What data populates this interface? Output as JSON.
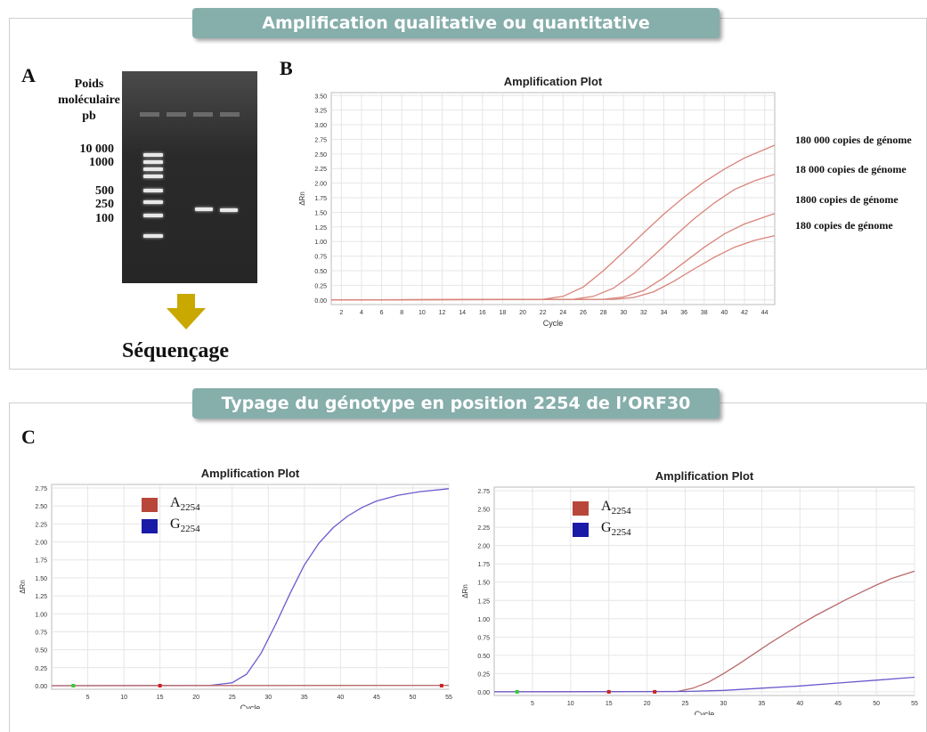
{
  "banners": {
    "top": "Amplification qualitative ou quantitative",
    "bottom": "Typage du génotype en position 2254 de l’ORF30"
  },
  "panel_letters": {
    "a": "A",
    "b": "B",
    "c": "C"
  },
  "gel": {
    "title_line1": "Poids",
    "title_line2": "moléculaire",
    "title_line3": "pb",
    "ladder_labels": [
      "10 000",
      "1000",
      "500",
      "250",
      "100"
    ]
  },
  "sequencing_label": "Séquençage",
  "colors": {
    "banner": "#86aeab",
    "curve_b": "#d9847a",
    "series_a": "#b8473a",
    "series_g": "#1a1aa8",
    "series_g_curve": "#6a5acd",
    "series_a_curve": "#b86a6a",
    "arrow": "#c9a800"
  },
  "curve_labels": [
    "180 000 copies de génome",
    "18 000 copies de génome",
    "1800 copies de génome",
    "180 copies de génome"
  ],
  "chart_data": [
    {
      "type": "line",
      "title": "Amplification Plot",
      "xlabel": "Cycle",
      "ylabel": "ΔRn",
      "xlim": [
        1,
        45
      ],
      "ylim": [
        -0.08,
        3.55
      ],
      "x_ticks": [
        2,
        4,
        6,
        8,
        10,
        12,
        14,
        16,
        18,
        20,
        22,
        24,
        26,
        28,
        30,
        32,
        34,
        36,
        38,
        40,
        42,
        44
      ],
      "y_ticks": [
        0.0,
        0.25,
        0.5,
        0.75,
        1.0,
        1.25,
        1.5,
        1.75,
        2.0,
        2.25,
        2.5,
        2.75,
        3.0,
        3.25,
        3.5
      ],
      "y_tick_labels": [
        "0.00",
        "0.25",
        "0.50",
        "0.75",
        "1.00",
        "1.25",
        "1.50",
        "1.75",
        "2.00",
        "2.25",
        "2.50",
        "2.75",
        "3.00",
        "3.25",
        "3.50"
      ],
      "grid": true,
      "series": [
        {
          "name": "180 000 copies de génome",
          "x": [
            1,
            22,
            24,
            26,
            28,
            30,
            32,
            34,
            36,
            38,
            40,
            42,
            45
          ],
          "y": [
            0,
            0.01,
            0.06,
            0.22,
            0.5,
            0.82,
            1.15,
            1.47,
            1.76,
            2.02,
            2.24,
            2.43,
            2.65
          ]
        },
        {
          "name": "18 000 copies de génome",
          "x": [
            1,
            25,
            27,
            29,
            31,
            33,
            35,
            37,
            39,
            41,
            43,
            45
          ],
          "y": [
            0,
            0.01,
            0.06,
            0.2,
            0.45,
            0.76,
            1.08,
            1.39,
            1.66,
            1.89,
            2.04,
            2.15
          ]
        },
        {
          "name": "1800 copies de génome",
          "x": [
            1,
            28,
            30,
            32,
            34,
            36,
            38,
            40,
            42,
            45
          ],
          "y": [
            0,
            0.01,
            0.05,
            0.16,
            0.38,
            0.64,
            0.9,
            1.13,
            1.3,
            1.48
          ]
        },
        {
          "name": "180 copies de génome",
          "x": [
            1,
            29,
            31,
            33,
            35,
            37,
            39,
            41,
            43,
            45
          ],
          "y": [
            0,
            0.01,
            0.04,
            0.14,
            0.32,
            0.53,
            0.73,
            0.9,
            1.02,
            1.1
          ]
        }
      ]
    },
    {
      "type": "line",
      "title": "Amplification Plot",
      "xlabel": "Cycle",
      "ylabel": "ΔRn",
      "xlim": [
        0,
        55
      ],
      "ylim": [
        -0.05,
        2.8
      ],
      "x_ticks": [
        5,
        10,
        15,
        20,
        25,
        30,
        35,
        40,
        45,
        50,
        55
      ],
      "y_ticks": [
        0.0,
        0.25,
        0.5,
        0.75,
        1.0,
        1.25,
        1.5,
        1.75,
        2.0,
        2.25,
        2.5,
        2.75
      ],
      "y_tick_labels": [
        "0.00",
        "0.25",
        "0.50",
        "0.75",
        "1.00",
        "1.25",
        "1.50",
        "1.75",
        "2.00",
        "2.25",
        "2.50",
        "2.75"
      ],
      "grid": true,
      "legend": [
        {
          "label": "A",
          "sub": "2254",
          "color": "#b8473a"
        },
        {
          "label": "G",
          "sub": "2254",
          "color": "#1a1aa8"
        }
      ],
      "series": [
        {
          "name": "G2254",
          "x": [
            0,
            22,
            25,
            27,
            29,
            31,
            33,
            35,
            37,
            39,
            41,
            43,
            45,
            48,
            51,
            55
          ],
          "y": [
            0,
            0.005,
            0.04,
            0.16,
            0.45,
            0.85,
            1.28,
            1.68,
            1.98,
            2.2,
            2.36,
            2.48,
            2.57,
            2.65,
            2.7,
            2.74
          ]
        },
        {
          "name": "A2254",
          "x": [
            0,
            55
          ],
          "y": [
            0,
            0.005
          ]
        }
      ]
    },
    {
      "type": "line",
      "title": "Amplification Plot",
      "xlabel": "Cycle",
      "ylabel": "ΔRn",
      "xlim": [
        0,
        55
      ],
      "ylim": [
        -0.05,
        2.8
      ],
      "x_ticks": [
        5,
        10,
        15,
        20,
        25,
        30,
        35,
        40,
        45,
        50,
        55
      ],
      "y_ticks": [
        0.0,
        0.25,
        0.5,
        0.75,
        1.0,
        1.25,
        1.5,
        1.75,
        2.0,
        2.25,
        2.5,
        2.75
      ],
      "y_tick_labels": [
        "0.00",
        "0.25",
        "0.50",
        "0.75",
        "1.00",
        "1.25",
        "1.50",
        "1.75",
        "2.00",
        "2.25",
        "2.50",
        "2.75"
      ],
      "grid": true,
      "legend": [
        {
          "label": "A",
          "sub": "2254",
          "color": "#b8473a"
        },
        {
          "label": "G",
          "sub": "2254",
          "color": "#1a1aa8"
        }
      ],
      "series": [
        {
          "name": "A2254",
          "x": [
            0,
            24,
            26,
            28,
            30,
            32,
            34,
            36,
            38,
            40,
            42,
            44,
            46,
            48,
            50,
            52,
            55
          ],
          "y": [
            0,
            0.005,
            0.05,
            0.13,
            0.25,
            0.38,
            0.52,
            0.66,
            0.79,
            0.92,
            1.04,
            1.15,
            1.26,
            1.36,
            1.46,
            1.55,
            1.65
          ]
        },
        {
          "name": "G2254",
          "x": [
            0,
            25,
            30,
            35,
            40,
            45,
            50,
            55
          ],
          "y": [
            0,
            0.005,
            0.02,
            0.05,
            0.08,
            0.12,
            0.16,
            0.2
          ]
        }
      ]
    }
  ]
}
